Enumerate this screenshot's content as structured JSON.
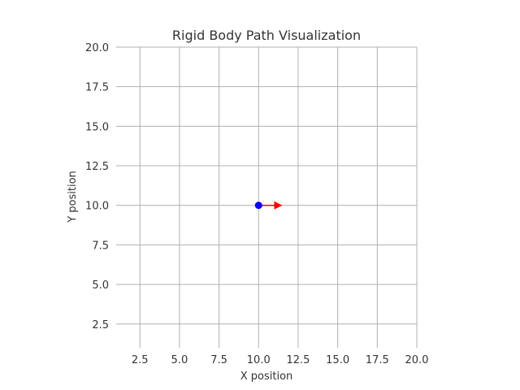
{
  "chart_data": {
    "type": "scatter",
    "title": "Rigid Body Path Visualization",
    "xlabel": "X position",
    "ylabel": "Y position",
    "xlim": [
      1,
      20
    ],
    "ylim": [
      1,
      20
    ],
    "xticks": [
      2.5,
      5.0,
      7.5,
      10.0,
      12.5,
      15.0,
      17.5,
      20.0
    ],
    "yticks": [
      2.5,
      5.0,
      7.5,
      10.0,
      12.5,
      15.0,
      17.5,
      20.0
    ],
    "xtick_labels": [
      "2.5",
      "5.0",
      "7.5",
      "10.0",
      "12.5",
      "15.0",
      "17.5",
      "20.0"
    ],
    "ytick_labels": [
      "2.5",
      "5.0",
      "7.5",
      "10.0",
      "12.5",
      "15.0",
      "17.5",
      "20.0"
    ],
    "grid": true,
    "points": [
      {
        "x": 10.0,
        "y": 10.0,
        "color": "#0000ff"
      }
    ],
    "arrows": [
      {
        "x": 10.0,
        "y": 10.0,
        "dx": 1.5,
        "dy": 0.0,
        "color": "#ff0000"
      }
    ]
  }
}
